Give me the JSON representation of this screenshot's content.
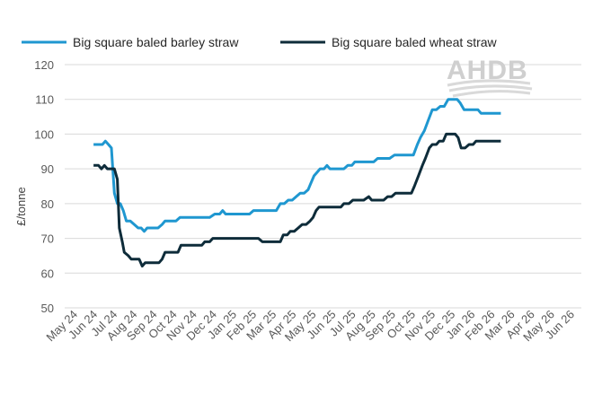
{
  "chart_data": {
    "type": "line",
    "title": "",
    "xlabel": "",
    "ylabel": "£/tonne",
    "ylim": [
      50,
      120
    ],
    "yticks": [
      50,
      60,
      70,
      80,
      90,
      100,
      110,
      120
    ],
    "grid": "horizontal",
    "legend_position": "top",
    "x_categories": [
      "May 24",
      "Jun 24",
      "Jul 24",
      "Aug 24",
      "Sep 24",
      "Oct 24",
      "Nov 24",
      "Dec 24",
      "Jan 25",
      "Feb 25",
      "Mar 25",
      "Apr 25",
      "May 25",
      "Jun 25",
      "Jul 25",
      "Aug 25",
      "Sep 25",
      "Oct 25",
      "Nov 25",
      "Dec 25",
      "Jan 26",
      "Feb 26",
      "Mar 26",
      "Apr 26",
      "May 26",
      "Jun 26"
    ],
    "series": [
      {
        "name": "Big square baled barley straw",
        "color": "#1f97d0",
        "points": [
          [
            1.45,
            97
          ],
          [
            1.7,
            97
          ],
          [
            1.9,
            97
          ],
          [
            2.05,
            98
          ],
          [
            2.2,
            97
          ],
          [
            2.35,
            96
          ],
          [
            2.5,
            83
          ],
          [
            2.65,
            80
          ],
          [
            2.8,
            80
          ],
          [
            2.95,
            78
          ],
          [
            3.1,
            75
          ],
          [
            3.3,
            75
          ],
          [
            3.5,
            74
          ],
          [
            3.7,
            73
          ],
          [
            3.85,
            73
          ],
          [
            4.0,
            72
          ],
          [
            4.15,
            73
          ],
          [
            4.4,
            73
          ],
          [
            4.7,
            73
          ],
          [
            4.9,
            74
          ],
          [
            5.05,
            75
          ],
          [
            5.3,
            75
          ],
          [
            5.6,
            75
          ],
          [
            5.8,
            76
          ],
          [
            6.2,
            76
          ],
          [
            6.6,
            76
          ],
          [
            7.0,
            76
          ],
          [
            7.3,
            76
          ],
          [
            7.55,
            77
          ],
          [
            7.8,
            77
          ],
          [
            7.95,
            78
          ],
          [
            8.1,
            77
          ],
          [
            8.5,
            77
          ],
          [
            8.9,
            77
          ],
          [
            9.3,
            77
          ],
          [
            9.5,
            78
          ],
          [
            9.9,
            78
          ],
          [
            10.3,
            78
          ],
          [
            10.65,
            78
          ],
          [
            10.85,
            80
          ],
          [
            11.05,
            80
          ],
          [
            11.25,
            81
          ],
          [
            11.45,
            81
          ],
          [
            11.65,
            82
          ],
          [
            11.85,
            83
          ],
          [
            12.05,
            83
          ],
          [
            12.25,
            84
          ],
          [
            12.4,
            86
          ],
          [
            12.55,
            88
          ],
          [
            12.7,
            89
          ],
          [
            12.85,
            90
          ],
          [
            13.05,
            90
          ],
          [
            13.2,
            91
          ],
          [
            13.35,
            90
          ],
          [
            13.7,
            90
          ],
          [
            14.05,
            90
          ],
          [
            14.25,
            91
          ],
          [
            14.45,
            91
          ],
          [
            14.6,
            92
          ],
          [
            14.9,
            92
          ],
          [
            15.3,
            92
          ],
          [
            15.55,
            92
          ],
          [
            15.75,
            93
          ],
          [
            16.1,
            93
          ],
          [
            16.35,
            93
          ],
          [
            16.6,
            94
          ],
          [
            16.9,
            94
          ],
          [
            17.2,
            94
          ],
          [
            17.55,
            94
          ],
          [
            17.75,
            97
          ],
          [
            17.9,
            99
          ],
          [
            18.1,
            101
          ],
          [
            18.3,
            104
          ],
          [
            18.5,
            107
          ],
          [
            18.7,
            107
          ],
          [
            18.9,
            108
          ],
          [
            19.1,
            108
          ],
          [
            19.3,
            110
          ],
          [
            19.55,
            110
          ],
          [
            19.75,
            110
          ],
          [
            19.9,
            109
          ],
          [
            20.1,
            107
          ],
          [
            20.35,
            107
          ],
          [
            20.6,
            107
          ],
          [
            20.8,
            107
          ],
          [
            20.95,
            106
          ],
          [
            21.3,
            106
          ],
          [
            21.65,
            106
          ],
          [
            21.95,
            106
          ]
        ]
      },
      {
        "name": "Big square baled wheat straw",
        "color": "#0e2c3a",
        "points": [
          [
            1.45,
            91
          ],
          [
            1.7,
            91
          ],
          [
            1.85,
            90
          ],
          [
            2.0,
            91
          ],
          [
            2.15,
            90
          ],
          [
            2.3,
            90
          ],
          [
            2.5,
            90
          ],
          [
            2.65,
            87
          ],
          [
            2.75,
            73
          ],
          [
            2.9,
            69
          ],
          [
            3.0,
            66
          ],
          [
            3.2,
            65
          ],
          [
            3.35,
            64
          ],
          [
            3.55,
            64
          ],
          [
            3.75,
            64
          ],
          [
            3.9,
            62
          ],
          [
            4.05,
            63
          ],
          [
            4.3,
            63
          ],
          [
            4.55,
            63
          ],
          [
            4.75,
            63
          ],
          [
            4.9,
            64
          ],
          [
            5.05,
            66
          ],
          [
            5.4,
            66
          ],
          [
            5.7,
            66
          ],
          [
            5.85,
            68
          ],
          [
            6.2,
            68
          ],
          [
            6.6,
            68
          ],
          [
            6.9,
            68
          ],
          [
            7.05,
            69
          ],
          [
            7.3,
            69
          ],
          [
            7.45,
            70
          ],
          [
            7.8,
            70
          ],
          [
            8.2,
            70
          ],
          [
            8.6,
            70
          ],
          [
            9.0,
            70
          ],
          [
            9.4,
            70
          ],
          [
            9.75,
            70
          ],
          [
            9.95,
            69
          ],
          [
            10.3,
            69
          ],
          [
            10.6,
            69
          ],
          [
            10.85,
            69
          ],
          [
            11.0,
            71
          ],
          [
            11.2,
            71
          ],
          [
            11.35,
            72
          ],
          [
            11.55,
            72
          ],
          [
            11.75,
            73
          ],
          [
            11.95,
            74
          ],
          [
            12.15,
            74
          ],
          [
            12.35,
            75
          ],
          [
            12.5,
            76
          ],
          [
            12.65,
            78
          ],
          [
            12.8,
            79
          ],
          [
            13.05,
            79
          ],
          [
            13.3,
            79
          ],
          [
            13.6,
            79
          ],
          [
            13.9,
            79
          ],
          [
            14.05,
            80
          ],
          [
            14.3,
            80
          ],
          [
            14.5,
            81
          ],
          [
            14.75,
            81
          ],
          [
            15.05,
            81
          ],
          [
            15.3,
            82
          ],
          [
            15.45,
            81
          ],
          [
            15.75,
            81
          ],
          [
            16.05,
            81
          ],
          [
            16.25,
            82
          ],
          [
            16.45,
            82
          ],
          [
            16.65,
            83
          ],
          [
            16.95,
            83
          ],
          [
            17.2,
            83
          ],
          [
            17.45,
            83
          ],
          [
            17.6,
            85
          ],
          [
            17.8,
            88
          ],
          [
            18.0,
            91
          ],
          [
            18.15,
            93
          ],
          [
            18.35,
            96
          ],
          [
            18.5,
            97
          ],
          [
            18.7,
            97
          ],
          [
            18.85,
            98
          ],
          [
            19.05,
            98
          ],
          [
            19.2,
            100
          ],
          [
            19.45,
            100
          ],
          [
            19.65,
            100
          ],
          [
            19.8,
            99
          ],
          [
            19.95,
            96
          ],
          [
            20.15,
            96
          ],
          [
            20.35,
            97
          ],
          [
            20.55,
            97
          ],
          [
            20.7,
            98
          ],
          [
            21.0,
            98
          ],
          [
            21.4,
            98
          ],
          [
            21.95,
            98
          ]
        ]
      }
    ]
  },
  "logo": {
    "text": "AHDB"
  }
}
